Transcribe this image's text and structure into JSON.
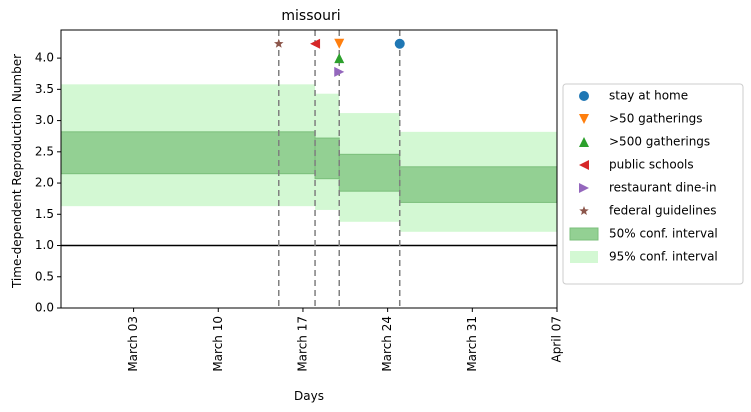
{
  "chart_data": {
    "type": "area",
    "title": "missouri",
    "xlabel": "Days",
    "ylabel": "Time-dependent Reproduction Number",
    "x_range": [
      "2020-02-26",
      "2020-04-07"
    ],
    "ylim": [
      0,
      4.45
    ],
    "x_ticks": [
      {
        "date": "2020-03-03",
        "label": "March 03"
      },
      {
        "date": "2020-03-10",
        "label": "March 10"
      },
      {
        "date": "2020-03-17",
        "label": "March 17"
      },
      {
        "date": "2020-03-24",
        "label": "March 24"
      },
      {
        "date": "2020-03-31",
        "label": "March 31"
      },
      {
        "date": "2020-04-07",
        "label": "April 07"
      }
    ],
    "y_ticks": [
      0.0,
      0.5,
      1.0,
      1.5,
      2.0,
      2.5,
      3.0,
      3.5,
      4.0
    ],
    "y_tick_labels": [
      "0.0",
      "0.5",
      "1.0",
      "1.5",
      "2.0",
      "2.5",
      "3.0",
      "3.5",
      "4.0"
    ],
    "reference_line": 1.0,
    "intervals": [
      {
        "start": "2020-02-26",
        "end": "2020-03-18",
        "ci50": [
          2.15,
          2.82
        ],
        "ci95": [
          1.63,
          3.58
        ]
      },
      {
        "start": "2020-03-18",
        "end": "2020-03-20",
        "ci50": [
          2.07,
          2.72
        ],
        "ci95": [
          1.57,
          3.43
        ]
      },
      {
        "start": "2020-03-20",
        "end": "2020-03-25",
        "ci50": [
          1.87,
          2.46
        ],
        "ci95": [
          1.38,
          3.12
        ]
      },
      {
        "start": "2020-03-25",
        "end": "2020-04-07",
        "ci50": [
          1.69,
          2.26
        ],
        "ci95": [
          1.22,
          2.82
        ]
      }
    ],
    "interventions": [
      {
        "name": "stay at home",
        "date": "2020-03-25",
        "y": 4.23,
        "marker": "circle",
        "color": "#1f77b4"
      },
      {
        "name": ">50 gatherings",
        "date": "2020-03-20",
        "y": 4.23,
        "marker": "triangle-down",
        "color": "#ff7f0e"
      },
      {
        "name": ">500 gatherings",
        "date": "2020-03-20",
        "y": 4.0,
        "marker": "triangle-up",
        "color": "#2ca02c"
      },
      {
        "name": "public schools",
        "date": "2020-03-18",
        "y": 4.23,
        "marker": "triangle-left",
        "color": "#d62728"
      },
      {
        "name": "restaurant dine-in",
        "date": "2020-03-20",
        "y": 3.78,
        "marker": "triangle-right",
        "color": "#9467bd"
      },
      {
        "name": "federal guidelines",
        "date": "2020-03-15",
        "y": 4.23,
        "marker": "star",
        "color": "#8c564b"
      }
    ],
    "vlines": [
      "2020-03-15",
      "2020-03-18",
      "2020-03-20",
      "2020-03-25"
    ],
    "legend": {
      "placement": "center-right-outside",
      "entries": [
        {
          "label": "stay at home",
          "marker": "circle",
          "color": "#1f77b4"
        },
        {
          "label": ">50 gatherings",
          "marker": "triangle-down",
          "color": "#ff7f0e"
        },
        {
          "label": ">500 gatherings",
          "marker": "triangle-up",
          "color": "#2ca02c"
        },
        {
          "label": "public schools",
          "marker": "triangle-left",
          "color": "#d62728"
        },
        {
          "label": "restaurant dine-in",
          "marker": "triangle-right",
          "color": "#9467bd"
        },
        {
          "label": "federal guidelines",
          "marker": "star",
          "color": "#8c564b"
        },
        {
          "label": "50% conf. interval",
          "marker": "patch",
          "color": "#93d093"
        },
        {
          "label": "95% conf. interval",
          "marker": "patch",
          "color": "#d3f8d3"
        }
      ]
    },
    "colors": {
      "ci50_fill": "#93d093",
      "ci50_edge": "#7bbf7b",
      "ci95_fill": "#d3f8d3",
      "vline": "#7f7f7f",
      "hline": "#000000"
    },
    "grid": false
  }
}
